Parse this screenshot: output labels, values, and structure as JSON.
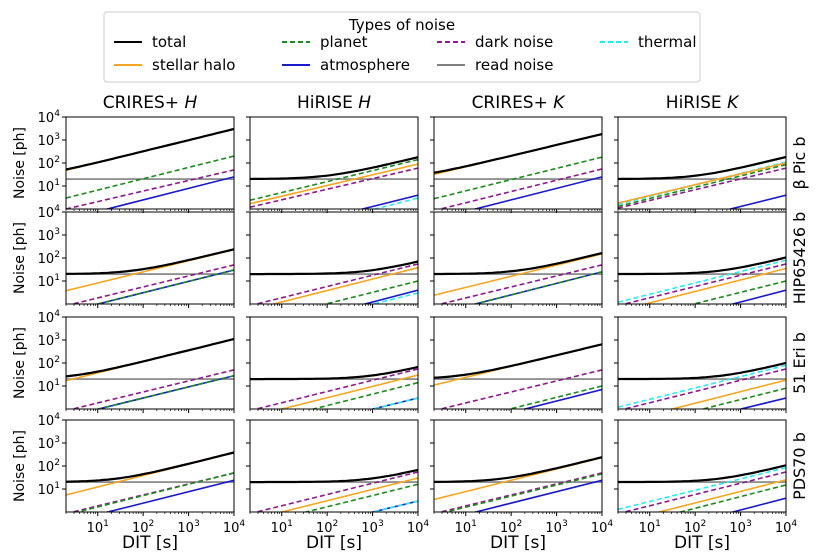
{
  "legend": {
    "title": "Types of noise",
    "entries": [
      {
        "key": "total",
        "label": "total",
        "color": "#000000",
        "dash": "solid"
      },
      {
        "key": "halo",
        "label": "stellar halo",
        "color": "#f5a623",
        "dash": "solid"
      },
      {
        "key": "planet",
        "label": "planet",
        "color": "#1f8a1f",
        "dash": "dashed"
      },
      {
        "key": "atm",
        "label": "atmosphere",
        "color": "#1a1acd",
        "dash": "solid"
      },
      {
        "key": "dark",
        "label": "dark noise",
        "color": "#8b1a8b",
        "dash": "dashed"
      },
      {
        "key": "read",
        "label": "read noise",
        "color": "#808080",
        "dash": "solid"
      },
      {
        "key": "thermal",
        "label": "thermal",
        "color": "#2ee8f0",
        "dash": "dashed"
      }
    ]
  },
  "columns": [
    "CRIRES+ H",
    "HiRISE H",
    "CRIRES+ K",
    "HiRISE K"
  ],
  "column_parts": [
    {
      "name": "CRIRES+ ",
      "band": "H"
    },
    {
      "name": "HiRISE ",
      "band": "H"
    },
    {
      "name": "CRIRES+ ",
      "band": "K"
    },
    {
      "name": "HiRISE ",
      "band": "K"
    }
  ],
  "rows": [
    "β Pic b",
    "HIP65426 b",
    "51 Eri b",
    "PDS70 b"
  ],
  "xlabel": "DIT [s]",
  "ylabel": "Noise [ph]",
  "chart_data": {
    "type": "line",
    "x_scale": "log",
    "y_scale": "log",
    "xlim": [
      2,
      10000
    ],
    "ylim": [
      1,
      10000
    ],
    "xticks": [
      "10^1",
      "10^2",
      "10^3",
      "10^4"
    ],
    "yticks": [
      "10^1",
      "10^2",
      "10^3",
      "10^4"
    ],
    "note_model": "each component noise grows as a power law in DIT; read noise is constant; total is the quadrature sum",
    "panels": [
      {
        "row": "β Pic b",
        "col": "CRIRES+ H",
        "components": {
          "halo": [
            2,
            48,
            10000,
            3000
          ],
          "planet": [
            2,
            3,
            10000,
            200
          ],
          "dark": [
            2,
            1,
            10000,
            50
          ],
          "atm": [
            2,
            0.35,
            10000,
            25
          ],
          "read": [
            2,
            20,
            10000,
            20
          ],
          "total": [
            2,
            52,
            10000,
            3050
          ]
        }
      },
      {
        "row": "β Pic b",
        "col": "HiRISE H",
        "components": {
          "halo": [
            2,
            1.7,
            10000,
            90
          ],
          "planet": [
            2,
            2.4,
            10000,
            140
          ],
          "dark": [
            2,
            1.2,
            10000,
            60
          ],
          "atm": [
            2,
            0.06,
            10000,
            4
          ],
          "thermal": [
            2,
            0.04,
            10000,
            3
          ],
          "read": [
            2,
            20,
            10000,
            20
          ],
          "total": [
            2,
            20,
            10000,
            140
          ]
        }
      },
      {
        "row": "β Pic b",
        "col": "CRIRES+ K",
        "components": {
          "halo": [
            2,
            32,
            10000,
            1800
          ],
          "planet": [
            2,
            2.8,
            10000,
            180
          ],
          "dark": [
            2,
            0.85,
            10000,
            55
          ],
          "atm": [
            2,
            0.35,
            10000,
            25
          ],
          "read": [
            2,
            20,
            10000,
            20
          ],
          "total": [
            2,
            36,
            10000,
            1850
          ]
        }
      },
      {
        "row": "β Pic b",
        "col": "HiRISE K",
        "components": {
          "halo": [
            2,
            1.8,
            10000,
            100
          ],
          "planet": [
            2,
            1.3,
            10000,
            85
          ],
          "dark": [
            2,
            1.1,
            10000,
            60
          ],
          "atm": [
            2,
            0.06,
            10000,
            4
          ],
          "thermal": [
            2,
            1.6,
            10000,
            110
          ],
          "read": [
            2,
            20,
            10000,
            20
          ],
          "total": [
            2,
            20,
            10000,
            150
          ]
        }
      },
      {
        "row": "HIP65426 b",
        "col": "CRIRES+ H",
        "components": {
          "halo": [
            2,
            3.8,
            10000,
            230
          ],
          "planet": [
            2,
            0.45,
            10000,
            30
          ],
          "dark": [
            2,
            0.85,
            10000,
            50
          ],
          "atm": [
            2,
            0.45,
            10000,
            30
          ],
          "read": [
            2,
            20,
            10000,
            20
          ],
          "total": [
            2,
            21,
            10000,
            240
          ]
        }
      },
      {
        "row": "HIP65426 b",
        "col": "HiRISE H",
        "components": {
          "halo": [
            2,
            0.55,
            10000,
            38
          ],
          "planet": [
            2,
            0.15,
            10000,
            10
          ],
          "dark": [
            2,
            0.85,
            10000,
            55
          ],
          "atm": [
            2,
            0.05,
            10000,
            4
          ],
          "thermal": [
            2,
            0.05,
            10000,
            3
          ],
          "read": [
            2,
            20,
            10000,
            20
          ],
          "total": [
            2,
            20,
            10000,
            65
          ]
        }
      },
      {
        "row": "HIP65426 b",
        "col": "CRIRES+ K",
        "components": {
          "halo": [
            2,
            2.4,
            10000,
            150
          ],
          "planet": [
            2,
            0.35,
            10000,
            25
          ],
          "dark": [
            2,
            0.85,
            10000,
            50
          ],
          "atm": [
            2,
            0.35,
            10000,
            25
          ],
          "read": [
            2,
            20,
            10000,
            20
          ],
          "total": [
            2,
            21,
            10000,
            160
          ]
        }
      },
      {
        "row": "HIP65426 b",
        "col": "HiRISE K",
        "components": {
          "halo": [
            2,
            0.5,
            10000,
            35
          ],
          "planet": [
            2,
            0.15,
            10000,
            10
          ],
          "dark": [
            2,
            0.85,
            10000,
            55
          ],
          "atm": [
            2,
            0.05,
            10000,
            4
          ],
          "thermal": [
            2,
            1.2,
            10000,
            80
          ],
          "read": [
            2,
            20,
            10000,
            20
          ],
          "total": [
            2,
            20,
            10000,
            95
          ]
        }
      },
      {
        "row": "51 Eri b",
        "col": "CRIRES+ H",
        "components": {
          "halo": [
            2,
            17,
            10000,
            1100
          ],
          "planet": [
            2,
            0.45,
            10000,
            28
          ],
          "dark": [
            2,
            0.85,
            10000,
            50
          ],
          "atm": [
            2,
            0.45,
            10000,
            28
          ],
          "read": [
            2,
            20,
            10000,
            20
          ],
          "total": [
            2,
            27,
            10000,
            1100
          ]
        }
      },
      {
        "row": "51 Eri b",
        "col": "HiRISE H",
        "components": {
          "halo": [
            2,
            0.45,
            10000,
            30
          ],
          "planet": [
            2,
            0.2,
            10000,
            14
          ],
          "dark": [
            2,
            0.85,
            10000,
            55
          ],
          "atm": [
            2,
            0.05,
            10000,
            3
          ],
          "thermal": [
            2,
            0.05,
            10000,
            3
          ],
          "read": [
            2,
            20,
            10000,
            20
          ],
          "total": [
            2,
            20,
            10000,
            65
          ]
        }
      },
      {
        "row": "51 Eri b",
        "col": "CRIRES+ K",
        "components": {
          "halo": [
            2,
            11,
            10000,
            650
          ],
          "planet": [
            2,
            0.15,
            10000,
            10
          ],
          "dark": [
            2,
            0.85,
            10000,
            50
          ],
          "atm": [
            2,
            0.1,
            10000,
            7
          ],
          "read": [
            2,
            20,
            10000,
            20
          ],
          "total": [
            2,
            23,
            10000,
            660
          ]
        }
      },
      {
        "row": "51 Eri b",
        "col": "HiRISE K",
        "components": {
          "halo": [
            2,
            0.25,
            10000,
            18
          ],
          "planet": [
            2,
            0.12,
            10000,
            8
          ],
          "dark": [
            2,
            0.85,
            10000,
            55
          ],
          "atm": [
            2,
            0.05,
            10000,
            3
          ],
          "thermal": [
            2,
            1.2,
            10000,
            80
          ],
          "read": [
            2,
            20,
            10000,
            20
          ],
          "total": [
            2,
            20,
            10000,
            95
          ]
        }
      },
      {
        "row": "PDS70 b",
        "col": "CRIRES+ H",
        "components": {
          "halo": [
            2,
            5.5,
            10000,
            380
          ],
          "planet": [
            2,
            0.75,
            10000,
            50
          ],
          "dark": [
            2,
            0.85,
            10000,
            50
          ],
          "atm": [
            2,
            0.35,
            10000,
            24
          ],
          "read": [
            2,
            20,
            10000,
            20
          ],
          "total": [
            2,
            21,
            10000,
            390
          ]
        }
      },
      {
        "row": "PDS70 b",
        "col": "HiRISE H",
        "components": {
          "halo": [
            2,
            0.45,
            10000,
            30
          ],
          "planet": [
            2,
            0.25,
            10000,
            16
          ],
          "dark": [
            2,
            0.85,
            10000,
            55
          ],
          "atm": [
            2,
            0.05,
            10000,
            3
          ],
          "thermal": [
            2,
            0.05,
            10000,
            3
          ],
          "read": [
            2,
            20,
            10000,
            20
          ],
          "total": [
            2,
            20,
            10000,
            65
          ]
        }
      },
      {
        "row": "PDS70 b",
        "col": "CRIRES+ K",
        "components": {
          "halo": [
            2,
            3.5,
            10000,
            230
          ],
          "planet": [
            2,
            0.75,
            10000,
            45
          ],
          "dark": [
            2,
            0.85,
            10000,
            50
          ],
          "atm": [
            2,
            0.35,
            10000,
            24
          ],
          "read": [
            2,
            20,
            10000,
            20
          ],
          "total": [
            2,
            21,
            10000,
            240
          ]
        }
      },
      {
        "row": "PDS70 b",
        "col": "HiRISE K",
        "components": {
          "halo": [
            2,
            0.35,
            10000,
            25
          ],
          "planet": [
            2,
            0.2,
            10000,
            15
          ],
          "dark": [
            2,
            0.85,
            10000,
            55
          ],
          "atm": [
            2,
            0.05,
            10000,
            4
          ],
          "thermal": [
            2,
            1.3,
            10000,
            85
          ],
          "read": [
            2,
            20,
            10000,
            20
          ],
          "total": [
            2,
            20,
            10000,
            100
          ]
        }
      }
    ]
  }
}
